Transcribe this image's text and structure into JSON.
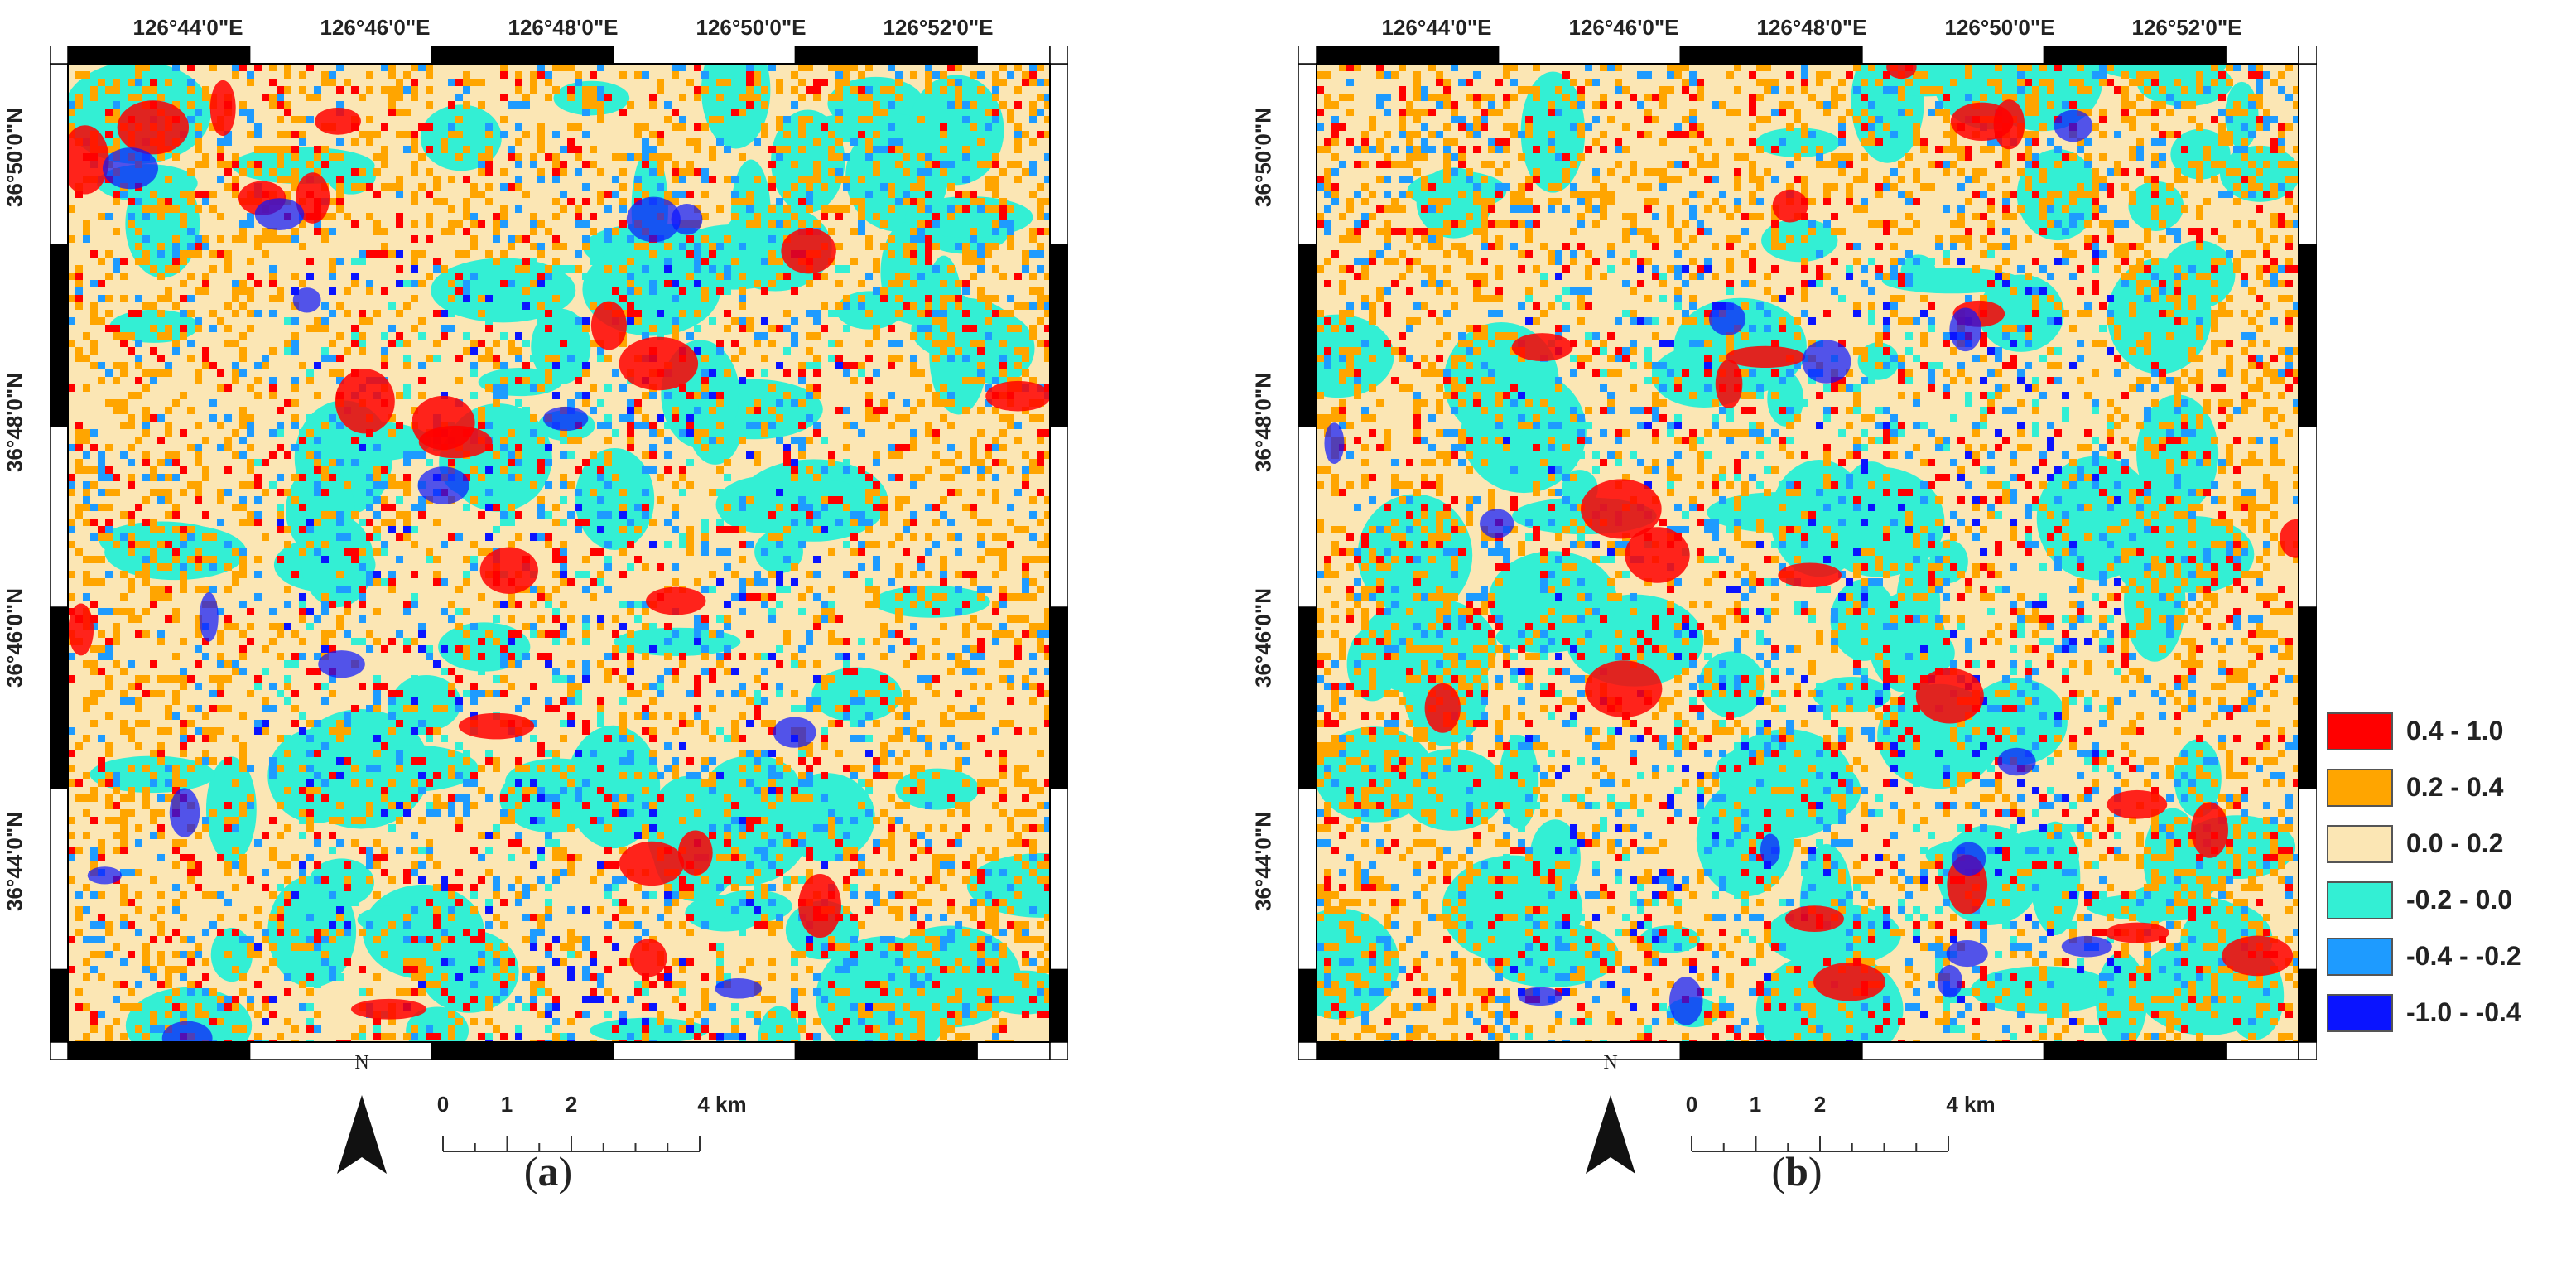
{
  "panels": [
    {
      "id": "a",
      "caption": "a",
      "lon_labels": [
        "126°44'0\"E",
        "126°46'0\"E",
        "126°48'0\"E",
        "126°50'0\"E",
        "126°52'0\"E"
      ],
      "lat_labels": [
        "36°50'0\"N",
        "36°48'0\"N",
        "36°46'0\"N",
        "36°44'0\"N"
      ]
    },
    {
      "id": "b",
      "caption": "b",
      "lon_labels": [
        "126°44'0\"E",
        "126°46'0\"E",
        "126°48'0\"E",
        "126°50'0\"E",
        "126°52'0\"E"
      ],
      "lat_labels": [
        "36°50'0\"N",
        "36°48'0\"N",
        "36°46'0\"N",
        "36°44'0\"N"
      ]
    }
  ],
  "north_arrow_label": "N",
  "scale_bar": {
    "ticks": [
      "0",
      "1",
      "2",
      "4 km"
    ]
  },
  "legend": [
    {
      "label": "0.4 - 1.0",
      "color": "#ff0000"
    },
    {
      "label": "0.2 - 0.4",
      "color": "#ffa500"
    },
    {
      "label": "0.0 - 0.2",
      "color": "#fbe6b4"
    },
    {
      "label": "-0.2 - 0.0",
      "color": "#33efd4"
    },
    {
      "label": "-0.4 - -0.2",
      "color": "#1e9bff"
    },
    {
      "label": "-1.0 - -0.4",
      "color": "#0a14ff"
    }
  ]
}
